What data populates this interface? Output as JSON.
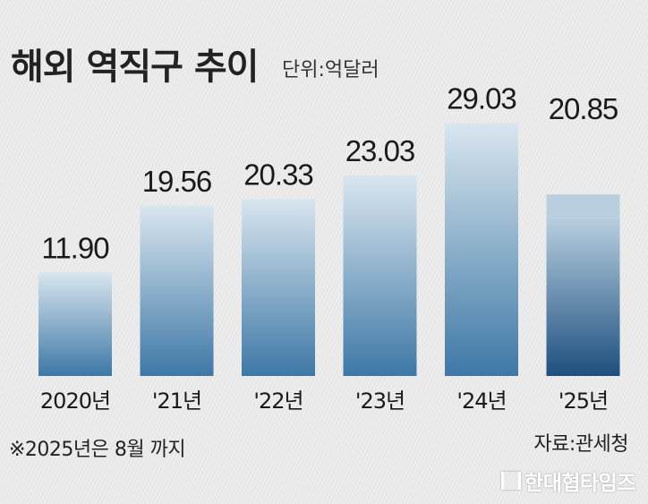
{
  "chart_data": {
    "type": "bar",
    "title": "해외 역직구 추이",
    "unit": "단위:억달러",
    "categories": [
      "2020년",
      "'21년",
      "'22년",
      "'23년",
      "'24년",
      "'25년"
    ],
    "values": [
      11.9,
      19.56,
      20.33,
      23.03,
      29.03,
      20.85
    ],
    "value_labels": [
      "11.90",
      "19.56",
      "20.33",
      "23.03",
      "29.03",
      "20.85"
    ],
    "partial_year_index": 5,
    "ylim": [
      0,
      31
    ],
    "grid": false,
    "legend": "none",
    "colors": {
      "bar_top": "#d9e6ef",
      "bar_bottom": "#3e78a6",
      "partial_top": "#b9cfe0",
      "partial_bottom": "#1d4f7e"
    }
  },
  "note": "※2025년은 8월 까지",
  "source": "자료:관세청",
  "brand": "한대협타임즈"
}
